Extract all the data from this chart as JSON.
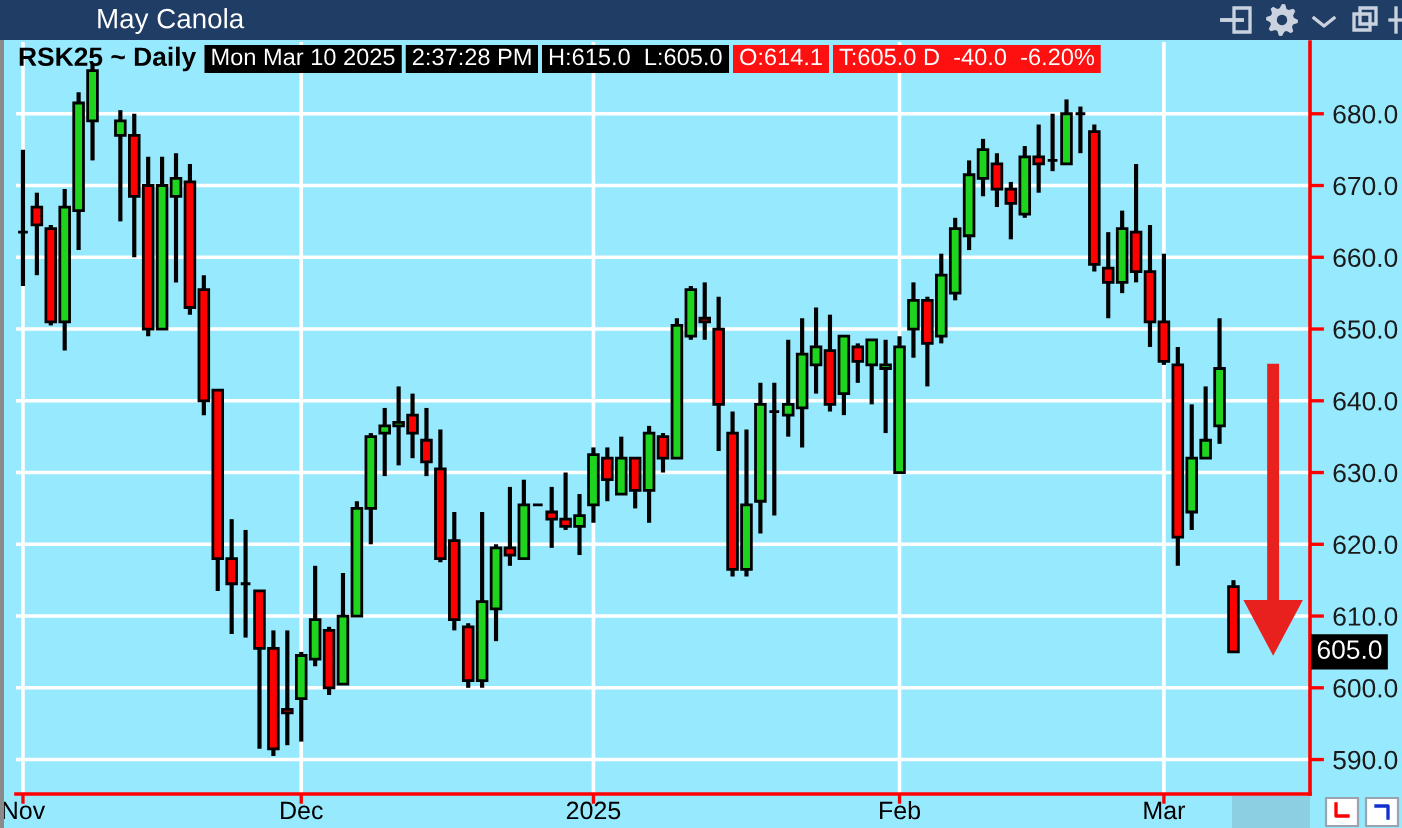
{
  "chart_data": {
    "type": "candlestick",
    "title": "May Canola",
    "subtitle": "RSK25 ~ Daily",
    "annotations": [
      "Mon Mar 10 2025",
      "2:37:28 PM",
      "H:615.0  L:605.0",
      "O:614.1",
      "T:605.0 D  -40.0  -6.20%",
      "605.0"
    ],
    "categories": [
      "Nov",
      null,
      null,
      null,
      null,
      null,
      null,
      null,
      null,
      null,
      null,
      null,
      null,
      null,
      null,
      null,
      null,
      null,
      null,
      null,
      "Dec",
      null,
      null,
      null,
      null,
      null,
      null,
      null,
      null,
      null,
      null,
      null,
      null,
      null,
      null,
      null,
      null,
      null,
      null,
      null,
      null,
      "2025",
      null,
      null,
      null,
      null,
      null,
      null,
      null,
      null,
      null,
      null,
      null,
      null,
      null,
      null,
      null,
      null,
      null,
      null,
      null,
      null,
      null,
      "Feb",
      null,
      null,
      null,
      null,
      null,
      null,
      null,
      null,
      null,
      null,
      null,
      null,
      null,
      null,
      null,
      null,
      null,
      null,
      "Mar",
      null,
      null,
      null,
      null,
      null,
      null,
      null,
      null,
      null,
      null
    ],
    "ohlc": [
      [
        663.5,
        675,
        656,
        663.5
      ],
      [
        667,
        669,
        657.5,
        664.5
      ],
      [
        664,
        664.5,
        650.5,
        651
      ],
      [
        651,
        669.5,
        647,
        667
      ],
      [
        666.5,
        683,
        661,
        681.5
      ],
      [
        679,
        687,
        673.5,
        686
      ],
      null,
      [
        677,
        680.5,
        665,
        679
      ],
      [
        677,
        680,
        660,
        668.5
      ],
      [
        670,
        674,
        649,
        650
      ],
      [
        650,
        674,
        650,
        670
      ],
      [
        668.5,
        674.5,
        656.5,
        671
      ],
      [
        670.5,
        673,
        652,
        653
      ],
      [
        655.5,
        657.5,
        638,
        640
      ],
      [
        641.5,
        641.5,
        613.5,
        618
      ],
      [
        618,
        623.5,
        607.5,
        614.5
      ],
      [
        614.5,
        622,
        607,
        614.5
      ],
      [
        613.5,
        613.5,
        591.5,
        605.5
      ],
      [
        605.5,
        608,
        590.5,
        591.5
      ],
      [
        597,
        608,
        592,
        596.5
      ],
      [
        598.5,
        605,
        592.5,
        604.5
      ],
      [
        604,
        617,
        603,
        609.5
      ],
      [
        608,
        608.5,
        599,
        600
      ],
      [
        600.5,
        616,
        600.5,
        610
      ],
      [
        610,
        626,
        610,
        625
      ],
      [
        625,
        635.5,
        620,
        635
      ],
      [
        635.5,
        639,
        629.5,
        636.5
      ],
      [
        636.5,
        642,
        631,
        637
      ],
      [
        638,
        641,
        632,
        635.5
      ],
      [
        634.5,
        639,
        629.5,
        631.5
      ],
      [
        630.5,
        636,
        617.5,
        618
      ],
      [
        620.5,
        624.5,
        608,
        609.5
      ],
      [
        608.5,
        609,
        600,
        601
      ],
      [
        601,
        624.5,
        600,
        612
      ],
      [
        611,
        620,
        606.5,
        619.5
      ],
      [
        619.5,
        628,
        617,
        618.5
      ],
      [
        618,
        629,
        618,
        625.5
      ],
      [
        625.5,
        625.5,
        625.5,
        625.5
      ],
      [
        624.5,
        628,
        619.5,
        623.5
      ],
      [
        623.5,
        630,
        622,
        622.5
      ],
      [
        622.5,
        627,
        618.5,
        624
      ],
      [
        625.5,
        633.5,
        623,
        632.5
      ],
      [
        632,
        633.5,
        626,
        629
      ],
      [
        627,
        635,
        627,
        632
      ],
      [
        632,
        632,
        625,
        627.5
      ],
      [
        627.5,
        636.5,
        623,
        635.5
      ],
      [
        635,
        635.5,
        630,
        632
      ],
      [
        632,
        651.5,
        632,
        650.5
      ],
      [
        649,
        656,
        648.5,
        655.5
      ],
      [
        651.5,
        656.5,
        648.5,
        651
      ],
      [
        650,
        654.5,
        633,
        639.5
      ],
      [
        635.5,
        638.5,
        615.5,
        616.5
      ],
      [
        616.5,
        636,
        615.5,
        625.5
      ],
      [
        626,
        642.5,
        621.5,
        639.5
      ],
      [
        638.5,
        642.5,
        624,
        638.5
      ],
      [
        638,
        648.5,
        635,
        639.5
      ],
      [
        639,
        651.5,
        633.5,
        646.5
      ],
      [
        645,
        653,
        641,
        647.5
      ],
      [
        647,
        652,
        638.5,
        639.5
      ],
      [
        641,
        649,
        638,
        649
      ],
      [
        647.5,
        648,
        642.5,
        645.5
      ],
      [
        645,
        648.5,
        639.5,
        648.5
      ],
      [
        644.5,
        648.5,
        635.5,
        645
      ],
      [
        630,
        649,
        630,
        647.5
      ],
      [
        650,
        656.5,
        646,
        654
      ],
      [
        654,
        654.5,
        642,
        648
      ],
      [
        649,
        660.5,
        648,
        657.5
      ],
      [
        655,
        665.5,
        654,
        664
      ],
      [
        663,
        673.5,
        661,
        671.5
      ],
      [
        671,
        676.5,
        668.5,
        675
      ],
      [
        673,
        674.5,
        667,
        669.5
      ],
      [
        669.5,
        670.5,
        662.5,
        667.5
      ],
      [
        666,
        675.5,
        665.5,
        674
      ],
      [
        674,
        678.5,
        669,
        673
      ],
      [
        673.5,
        680,
        672,
        673.5
      ],
      [
        673,
        682,
        673,
        680
      ],
      [
        680,
        681,
        674.5,
        680
      ],
      [
        677.5,
        678.5,
        658,
        659
      ],
      [
        658.5,
        663.5,
        651.5,
        656.5
      ],
      [
        656.5,
        666.5,
        655,
        664
      ],
      [
        663.5,
        673,
        656.5,
        658
      ],
      [
        658,
        664.5,
        647.5,
        651
      ],
      [
        651,
        660.5,
        645,
        645.5
      ],
      [
        645,
        647.5,
        617,
        621
      ],
      [
        624.5,
        639.5,
        622,
        632
      ],
      [
        632,
        642,
        632,
        634.5
      ],
      [
        636.5,
        651.5,
        634,
        644.5
      ],
      [
        614.1,
        615,
        605,
        605
      ],
      null,
      null,
      null,
      null,
      null
    ],
    "colors": [
      "#000000",
      "#ff0000",
      "#ff0000",
      "#1fd41f",
      "#1fd41f",
      "#1fd41f",
      null,
      "#1fd41f",
      "#ff0000",
      "#ff0000",
      "#1fd41f",
      "#1fd41f",
      "#ff0000",
      "#ff0000",
      "#ff0000",
      "#ff0000",
      "#000000",
      "#ff0000",
      "#ff0000",
      "#ff0000",
      "#1fd41f",
      "#1fd41f",
      "#ff0000",
      "#1fd41f",
      "#1fd41f",
      "#1fd41f",
      "#1fd41f",
      "#1fd41f",
      "#ff0000",
      "#ff0000",
      "#ff0000",
      "#ff0000",
      "#ff0000",
      "#1fd41f",
      "#1fd41f",
      "#ff0000",
      "#1fd41f",
      "#000000",
      "#ff0000",
      "#ff0000",
      "#1fd41f",
      "#1fd41f",
      "#ff0000",
      "#1fd41f",
      "#ff0000",
      "#1fd41f",
      "#ff0000",
      "#1fd41f",
      "#1fd41f",
      "#ff0000",
      "#ff0000",
      "#ff0000",
      "#1fd41f",
      "#1fd41f",
      "#000000",
      "#1fd41f",
      "#1fd41f",
      "#1fd41f",
      "#ff0000",
      "#1fd41f",
      "#ff0000",
      "#1fd41f",
      "#1fd41f",
      "#1fd41f",
      "#1fd41f",
      "#ff0000",
      "#1fd41f",
      "#1fd41f",
      "#1fd41f",
      "#1fd41f",
      "#ff0000",
      "#ff0000",
      "#1fd41f",
      "#ff0000",
      "#000000",
      "#1fd41f",
      "#000000",
      "#ff0000",
      "#ff0000",
      "#1fd41f",
      "#ff0000",
      "#ff0000",
      "#ff0000",
      "#ff0000",
      "#1fd41f",
      "#1fd41f",
      "#1fd41f",
      "#ff0000",
      null,
      null,
      null,
      null,
      null
    ],
    "ylim": [
      585.2,
      690
    ],
    "yticks": [
      {
        "value": 590,
        "label": "590.0"
      },
      {
        "value": 600,
        "label": "600.0"
      },
      {
        "value": 610,
        "label": "610.0"
      },
      {
        "value": 620,
        "label": "620.0"
      },
      {
        "value": 630,
        "label": "630.0"
      },
      {
        "value": 640,
        "label": "640.0"
      },
      {
        "value": 650,
        "label": "650.0"
      },
      {
        "value": 660,
        "label": "660.0"
      },
      {
        "value": 670,
        "label": "670.0"
      },
      {
        "value": 680,
        "label": "680.0"
      }
    ],
    "grid": true
  }
}
